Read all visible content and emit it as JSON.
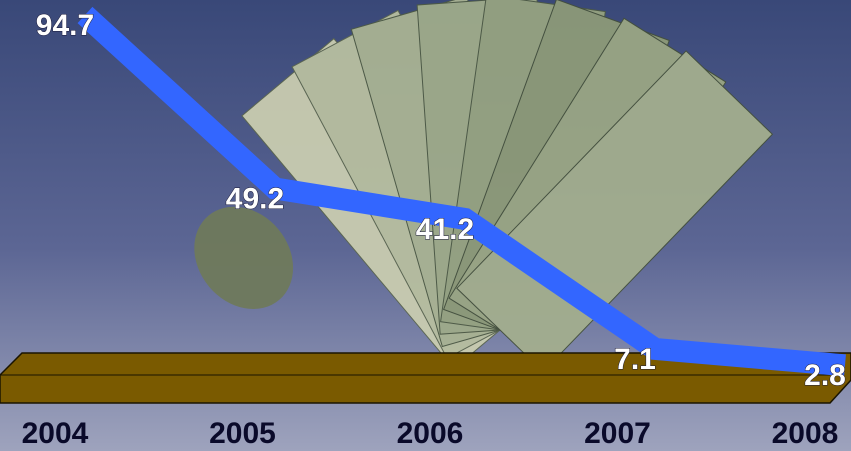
{
  "chart_data": {
    "type": "line",
    "categories": [
      "2004",
      "2005",
      "2006",
      "2007",
      "2008"
    ],
    "values": [
      94.7,
      49.2,
      41.2,
      7.1,
      2.8
    ],
    "color": "#3366ff"
  }
}
